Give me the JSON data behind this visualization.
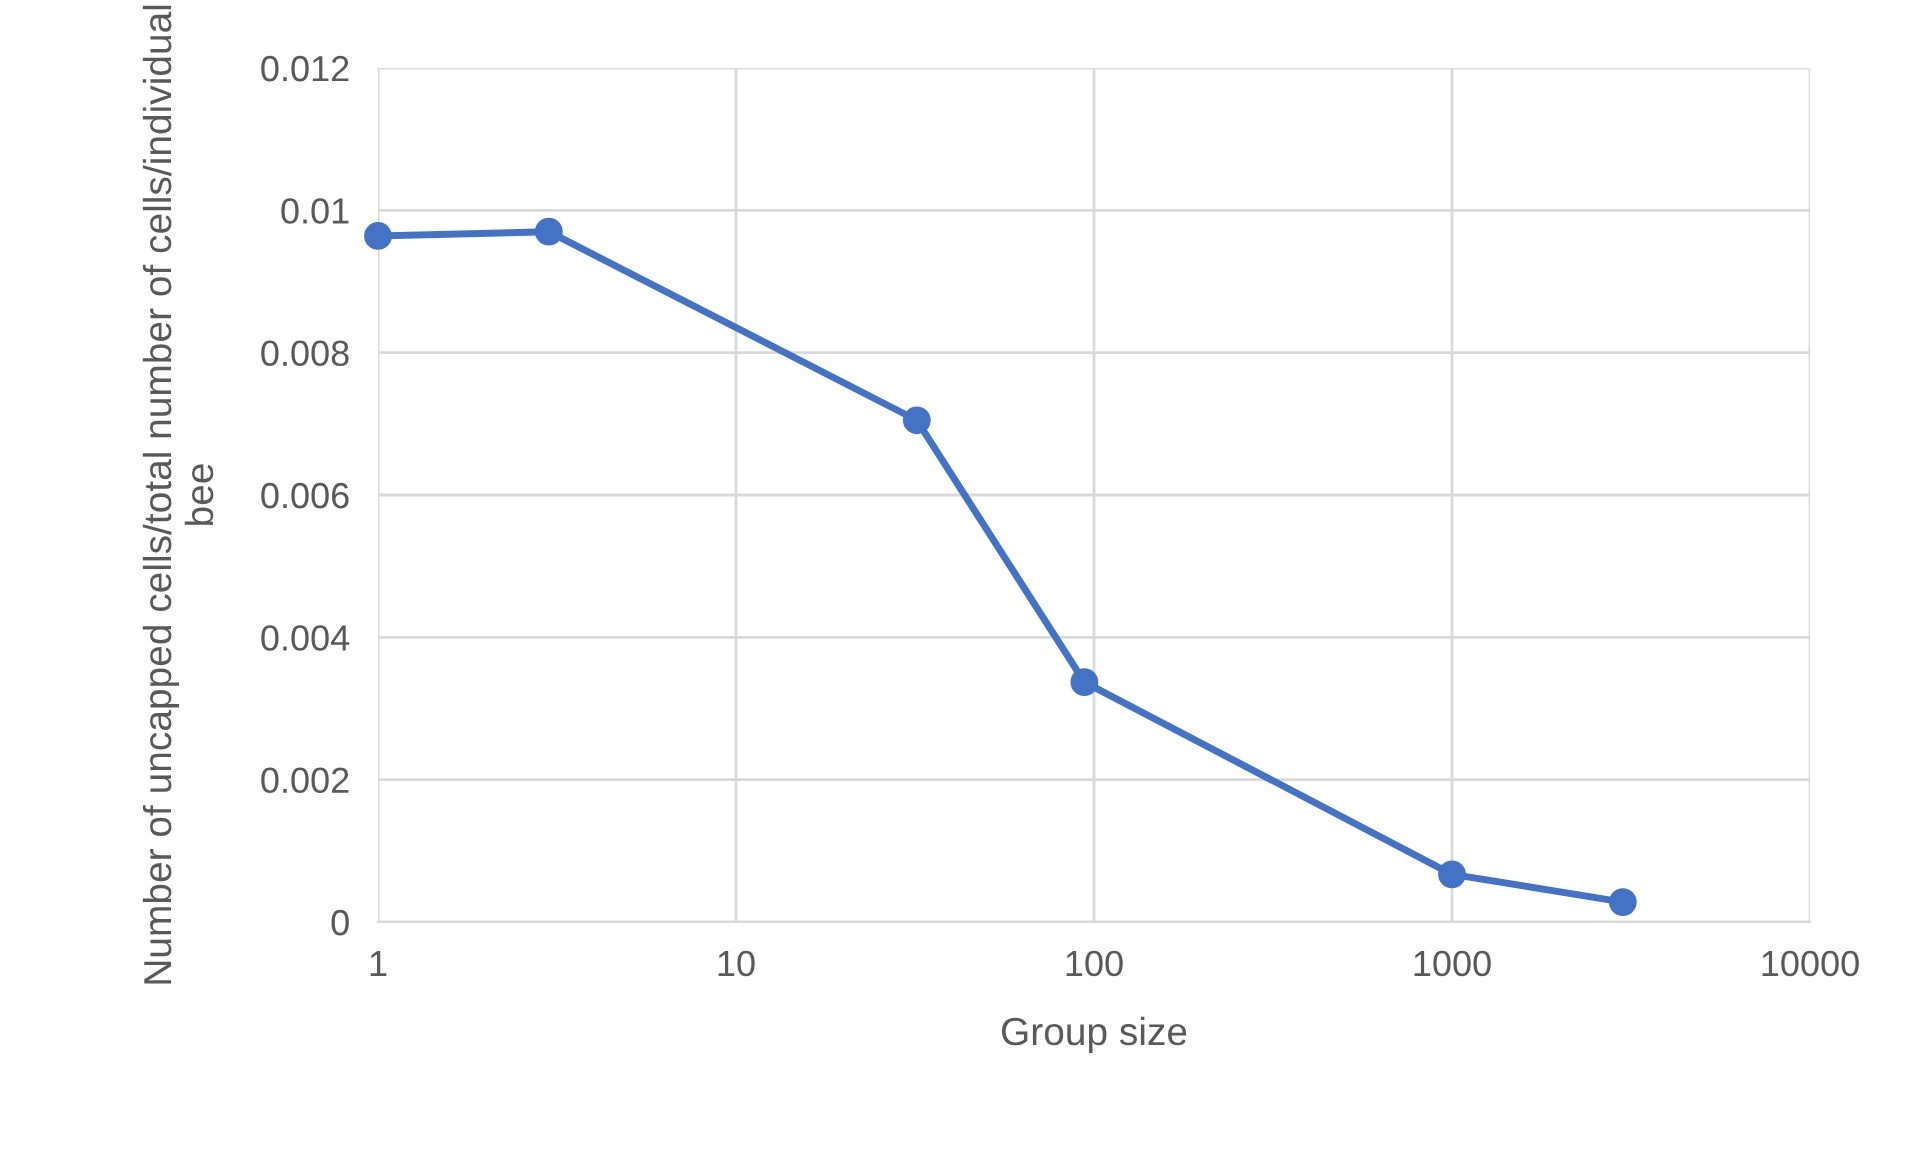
{
  "chart_data": {
    "type": "line",
    "xlabel": "Group size",
    "ylabel": "Number of uncapped cells/total number of cells/individual bee",
    "x": [
      1,
      3,
      32,
      94,
      1000,
      3000
    ],
    "series": [
      {
        "color": "#4472c4",
        "values": [
          0.00964,
          0.0097,
          0.00705,
          0.00337,
          0.00067,
          0.00028
        ]
      }
    ],
    "log": "x",
    "xlim": [
      1,
      10000
    ],
    "xticks": [
      1,
      10,
      100,
      1000,
      10000
    ],
    "ylim": [
      0,
      0.012
    ],
    "yticks": [
      0,
      0.002,
      0.004,
      0.006,
      0.008,
      0.01,
      0.012
    ],
    "grid": true,
    "marker": "circle",
    "line_style": "solid",
    "legend": false
  }
}
